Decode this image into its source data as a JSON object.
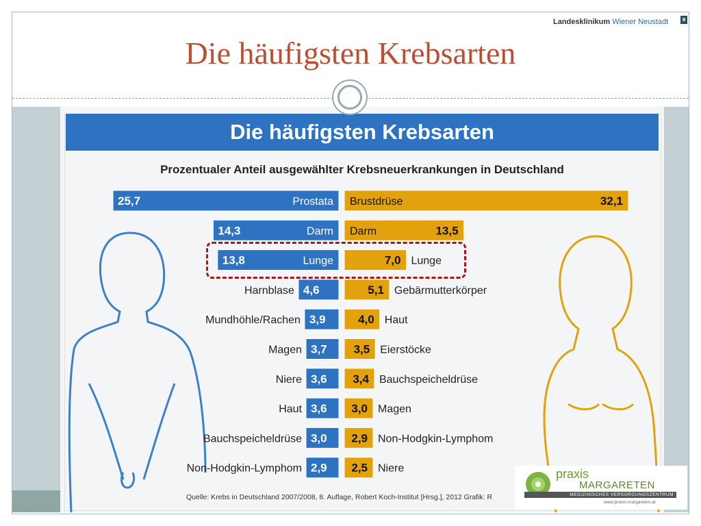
{
  "slide": {
    "title": "Die häufigsten Krebsarten",
    "logo_bold": "Landesklinikum",
    "logo_regular": "Wiener Neustadt"
  },
  "chart_data": {
    "type": "bar",
    "title": "Die häufigsten Krebsarten",
    "subtitle": "Prozentualer Anteil ausgewählter Krebsneuerkrankungen in Deutschland",
    "colors": {
      "men": "#2d73c2",
      "women": "#e3a20b",
      "highlight": "#a8171b"
    },
    "series": [
      {
        "categories": [
          "Prostata",
          "Darm",
          "Lunge",
          "Harnblase",
          "Mundhöhle/Rachen",
          "Magen",
          "Niere",
          "Haut",
          "Bauchspeicheldrüse",
          "Non-Hodgkin-Lymphom"
        ],
        "values": [
          25.7,
          14.3,
          13.8,
          4.6,
          3.9,
          3.7,
          3.6,
          3.6,
          3.0,
          2.9
        ],
        "labels": [
          "25,7",
          "14,3",
          "13,8",
          "4,6",
          "3,9",
          "3,7",
          "3,6",
          "3,6",
          "3,0",
          "2,9"
        ]
      },
      {
        "categories": [
          "Brustdrüse",
          "Darm",
          "Lunge",
          "Gebärmutterkörper",
          "Haut",
          "Eierstöcke",
          "Bauchspeicheldrüse",
          "Magen",
          "Non-Hodgkin-Lymphom",
          "Niere"
        ],
        "values": [
          32.1,
          13.5,
          7.0,
          5.1,
          4.0,
          3.5,
          3.4,
          3.0,
          2.9,
          2.5
        ],
        "labels": [
          "32,1",
          "13,5",
          "7,0",
          "5,1",
          "4,0",
          "3,5",
          "3,4",
          "3,0",
          "2,9",
          "2,5"
        ]
      }
    ],
    "highlighted_category": "Lunge",
    "source": "Quelle: Krebs in Deutschland 2007/2008, 8. Auflage, Robert Koch-Institut [Hrsg.], 2012     Grafik: R"
  },
  "praxis": {
    "word": "praxis",
    "name": "MARGARETEN",
    "tagline": "MEDIZINISCHES VERSORGUNGSZENTRUM",
    "url": "www.praxis-margareten.at"
  }
}
